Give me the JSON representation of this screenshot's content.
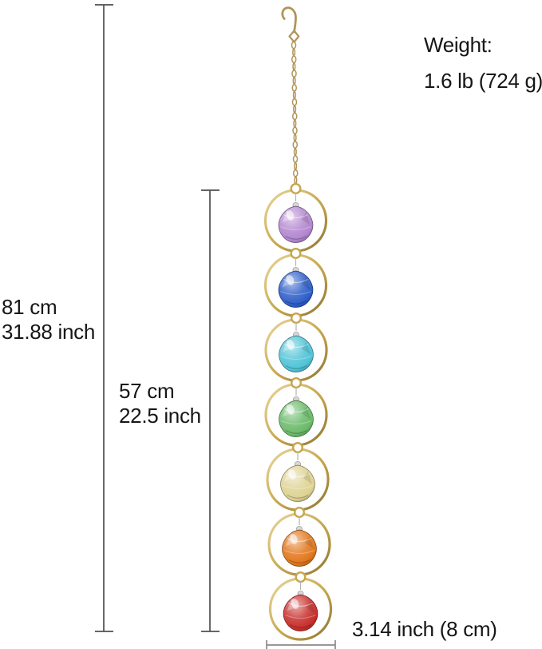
{
  "annotations": {
    "weight_label": "Weight:",
    "weight_value": "1.6 lb (724 g)",
    "total_height_cm": "81 cm",
    "total_height_inch": "31.88 inch",
    "drop_height_cm": "57 cm",
    "drop_height_inch": "22.5 inch",
    "ring_width": "3.14 inch (8 cm)"
  },
  "product": {
    "name": "7 chakra crystal ball suncatcher with gold rings, chain and S-hook",
    "metal_color": "#c7a64b",
    "metal_highlight": "#e9d79c",
    "chain_color": "#b2945a",
    "crystal_colors": [
      "#b286cf",
      "#2d5ec9",
      "#4fc3d6",
      "#6aba68",
      "#ded292",
      "#e1761b",
      "#c72f2b"
    ]
  },
  "style": {
    "background": "#ffffff",
    "text_color": "#161616",
    "dimension_line_color": "#4f4f4f",
    "width_line_color": "#8a8a8a"
  }
}
